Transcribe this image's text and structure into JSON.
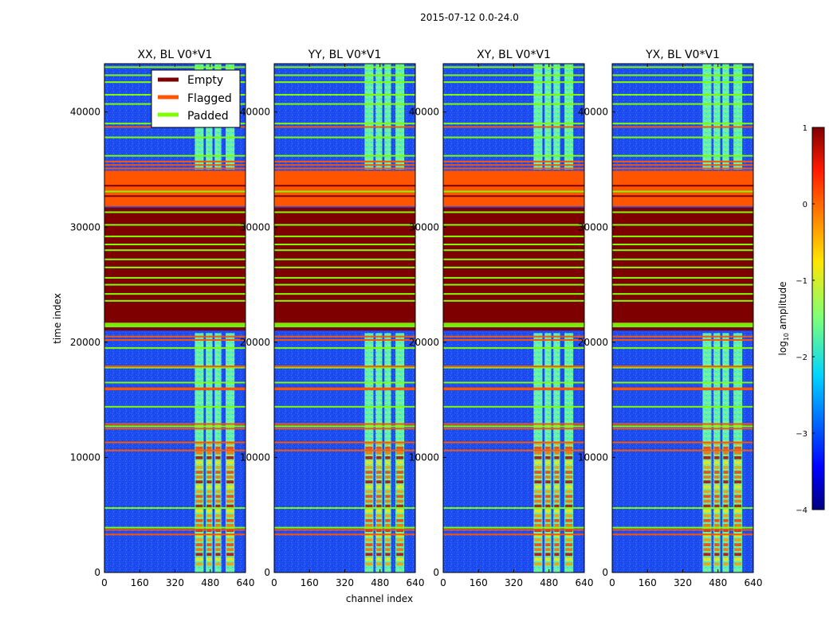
{
  "chart_data": {
    "type": "heatmap",
    "title": "2015-07-12 0.0-24.0",
    "xlabel": "channel index",
    "ylabel": "time index",
    "xlim": [
      0,
      640
    ],
    "ylim": [
      0,
      44200
    ],
    "xticks": [
      0,
      160,
      320,
      480,
      640
    ],
    "yticks": [
      0,
      10000,
      20000,
      30000,
      40000
    ],
    "panels": [
      {
        "title": "XX, BL V0*V1",
        "legend": true
      },
      {
        "title": "YY, BL V0*V1",
        "legend": false
      },
      {
        "title": "XY, BL V0*V1",
        "legend": false
      },
      {
        "title": "YX, BL V0*V1",
        "legend": false
      }
    ],
    "legend": {
      "location": "top-right of first panel",
      "entries": [
        {
          "label": "Empty",
          "color": "#7f0000"
        },
        {
          "label": "Flagged",
          "color": "#ff5500"
        },
        {
          "label": "Padded",
          "color": "#80ff00"
        }
      ]
    },
    "colorbar": {
      "label": "log10 amplitude",
      "range": [
        -4,
        1
      ],
      "ticks": [
        1,
        0,
        -1,
        -2,
        -3,
        -4
      ],
      "tick_labels": [
        "1",
        "0",
        "−1",
        "−2",
        "−3",
        "−4"
      ],
      "colormap": "jet"
    },
    "signal_channel_bands": [
      [
        410,
        450
      ],
      [
        460,
        490
      ],
      [
        500,
        530
      ],
      [
        550,
        590
      ]
    ],
    "flagged_time_range": [
      31800,
      34900
    ],
    "empty_time_range": [
      21500,
      31700
    ],
    "padded_time_range": [
      20800,
      21700
    ],
    "signal_gap_time_range": [
      20800,
      35000
    ],
    "strong_signal_time_range": [
      600,
      11500
    ],
    "padded_rows": [
      3900,
      5600,
      12700,
      14400,
      16500,
      17800,
      19500,
      23600,
      24200,
      25000,
      25600,
      26500,
      27200,
      28000,
      28500,
      29200,
      30200,
      31300,
      33100,
      36200,
      37800,
      39000,
      40700,
      41500,
      42600,
      43200,
      43900
    ],
    "flagged_rows": [
      3300,
      3700,
      10600,
      11300,
      12500,
      12900,
      15900,
      16000,
      17900,
      20200,
      20500,
      35100,
      35400,
      35700,
      38700
    ],
    "empty_rows": [
      32700,
      33600
    ]
  }
}
